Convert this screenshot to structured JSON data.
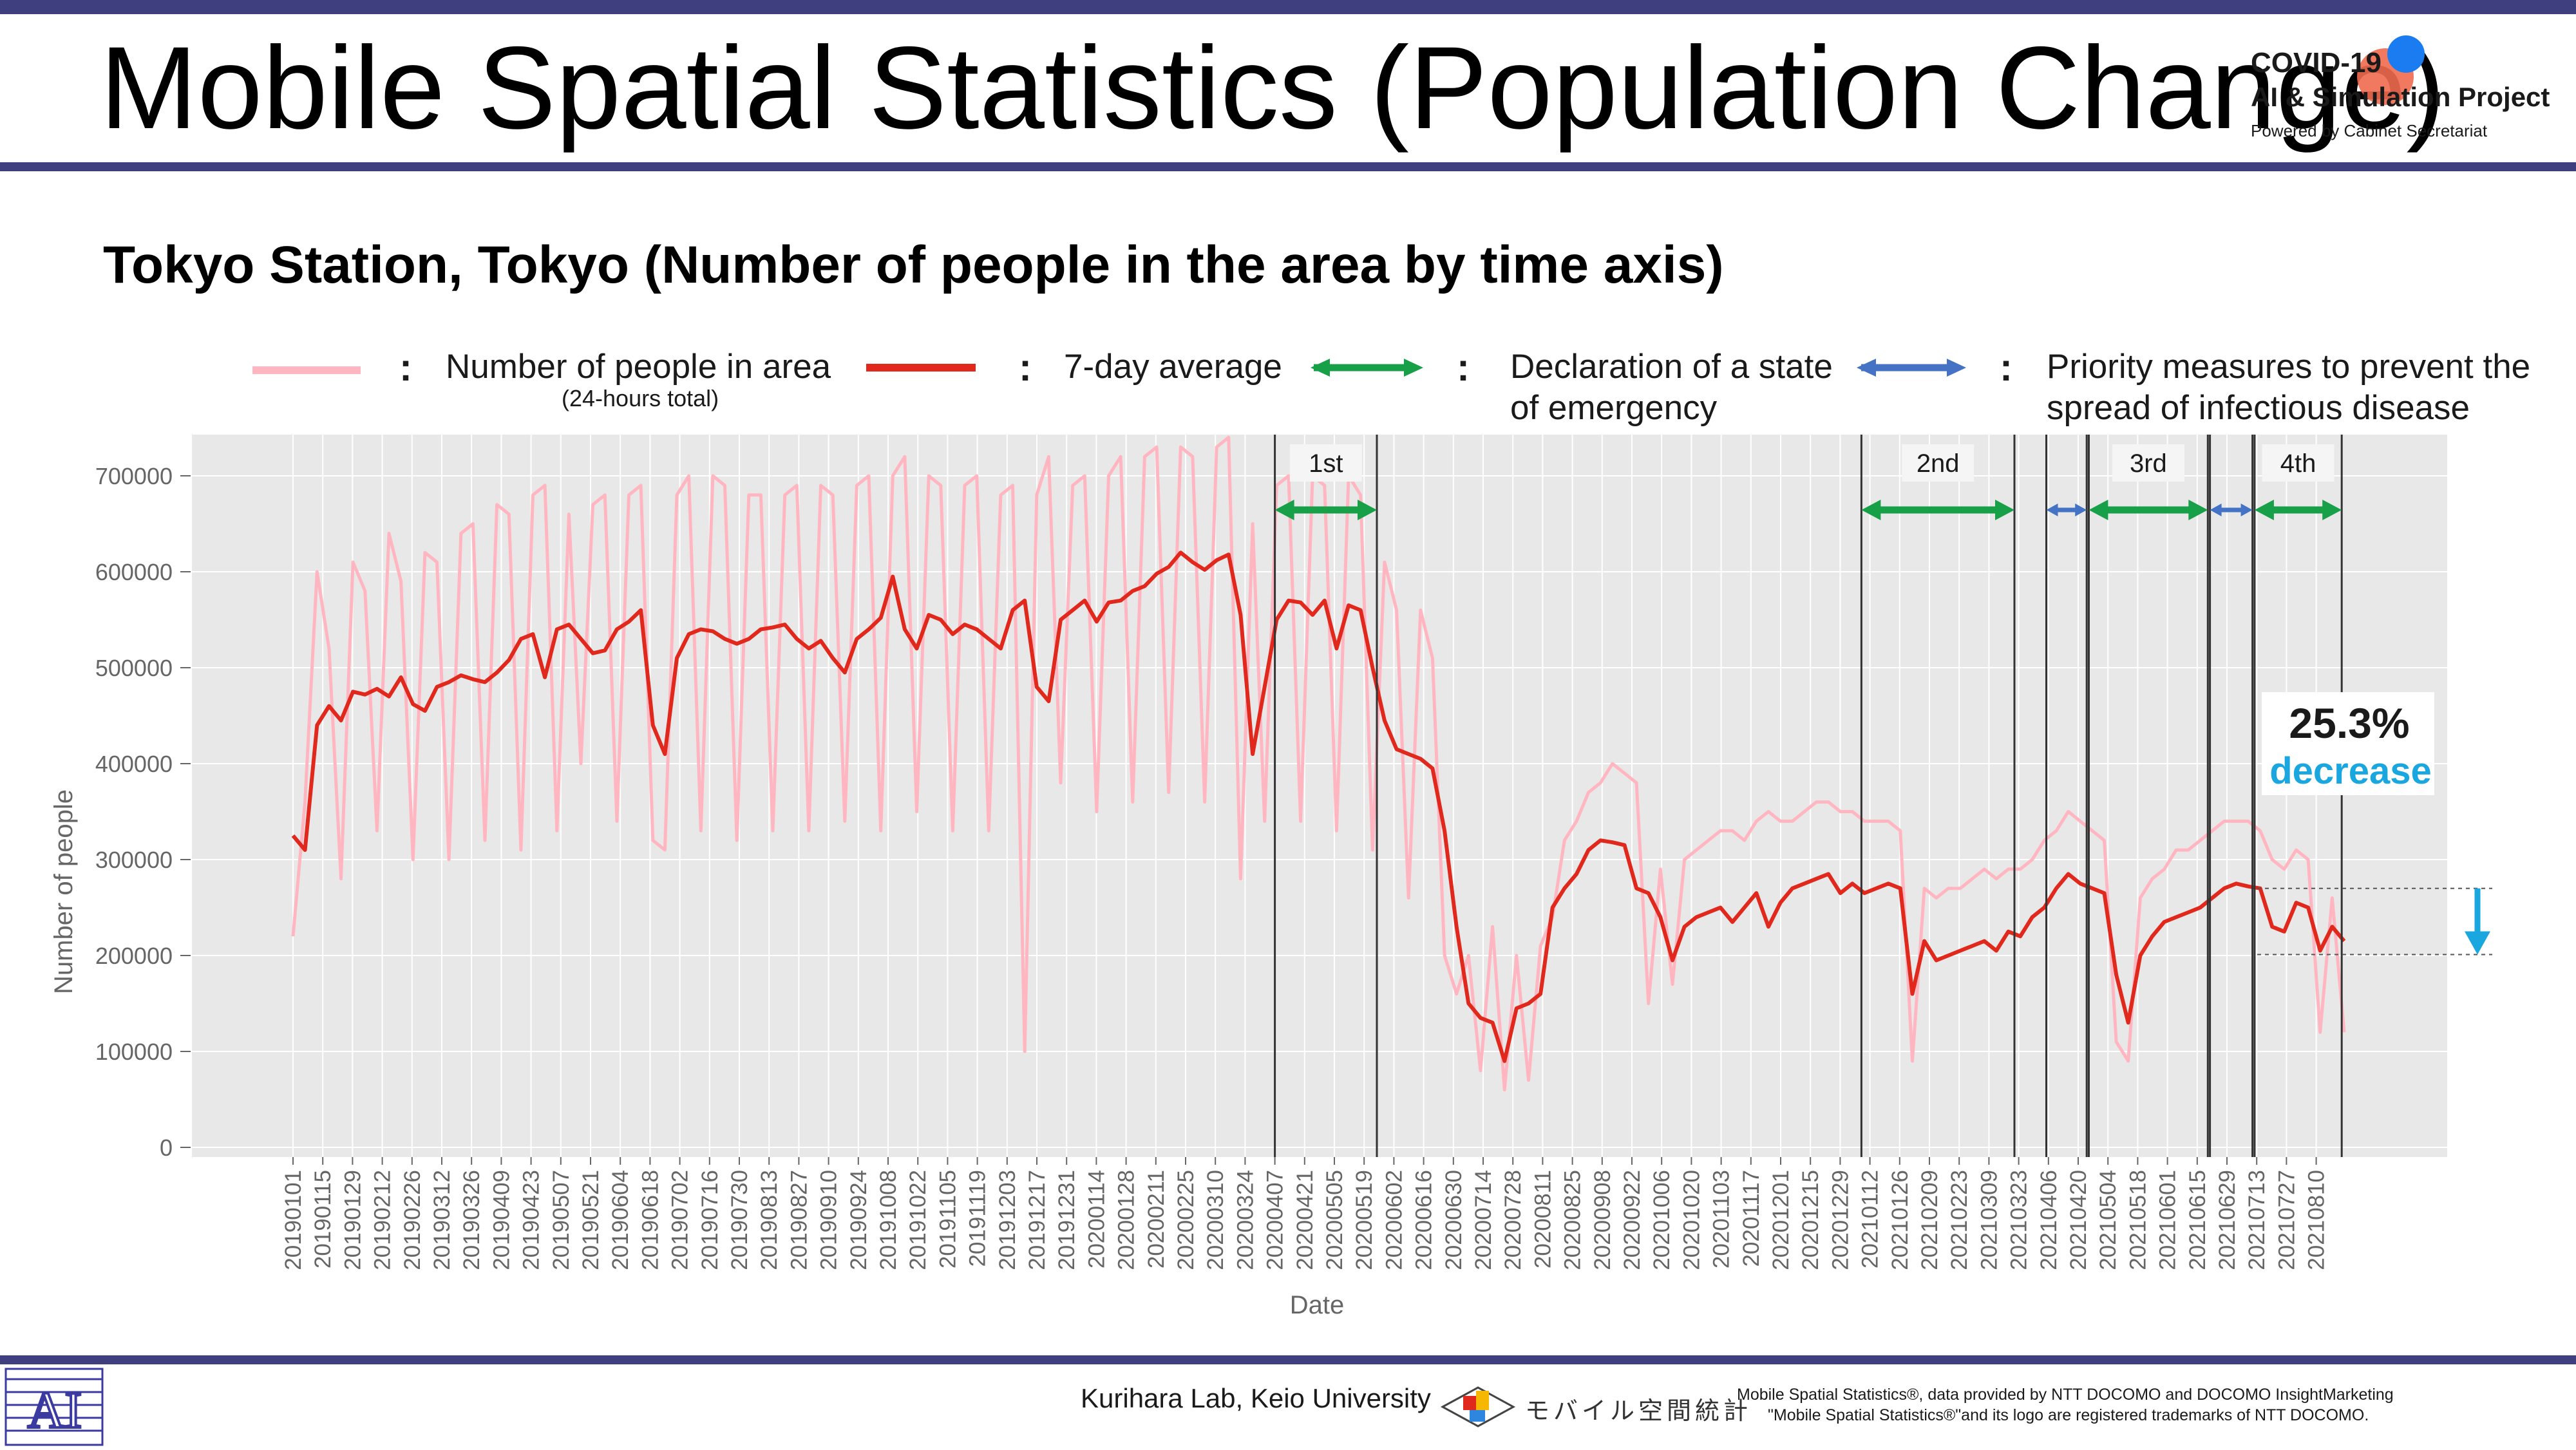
{
  "slide": {
    "title": "Mobile Spatial Statistics (Population Change)",
    "subtitle": "Tokyo Station, Tokyo (Number of people in the area by time axis)",
    "logo": {
      "line1": "COVID-19",
      "line2": "AI & Simulation Project",
      "line3": "Powered by Cabinet Secretariat"
    },
    "footer": {
      "lab": "Kurihara Lab, Keio University",
      "mobile_logo_text": "モバイル空間統計",
      "note1": "Mobile Spatial Statistics®, data provided by NTT DOCOMO and DOCOMO InsightMarketing",
      "note2": "\"Mobile Spatial Statistics®\"and its logo are registered trademarks of NTT DOCOMO."
    },
    "colors": {
      "bar": "#3f3f7f",
      "daily": "#ffb6c1",
      "avg": "#e0291c",
      "emergency": "#18a049",
      "priority": "#4472c4",
      "decrease": "#1aa7e0"
    }
  },
  "legend": {
    "colon": ":",
    "daily_label": "Number of people in area",
    "daily_sub": "(24-hours total)",
    "avg_label": "7-day average",
    "emergency_label_1": "Declaration of a state",
    "emergency_label_2": "of emergency",
    "priority_label_1": "Priority measures to prevent the",
    "priority_label_2": "spread of infectious disease"
  },
  "chart_data": {
    "type": "line",
    "xlabel": "Date",
    "ylabel": "Number of people",
    "ylim": [
      0,
      750000
    ],
    "y_ticks": [
      "0",
      "100000",
      "200000",
      "300000",
      "400000",
      "500000",
      "600000",
      "700000"
    ],
    "x_ticks": [
      "20190101",
      "20190115",
      "20190129",
      "20190212",
      "20190226",
      "20190312",
      "20190326",
      "20190409",
      "20190423",
      "20190507",
      "20190521",
      "20190604",
      "20190618",
      "20190702",
      "20190716",
      "20190730",
      "20190813",
      "20190827",
      "20190910",
      "20190924",
      "20191008",
      "20191022",
      "20191105",
      "20191119",
      "20191203",
      "20191217",
      "20191231",
      "20200114",
      "20200128",
      "20200211",
      "20200225",
      "20200310",
      "20200324",
      "20200407",
      "20200421",
      "20200505",
      "20200519",
      "20200602",
      "20200616",
      "20200630",
      "20200714",
      "20200728",
      "20200811",
      "20200825",
      "20200908",
      "20200922",
      "20201006",
      "20201020",
      "20201103",
      "20201117",
      "20201201",
      "20201215",
      "20201229",
      "20210112",
      "20210126",
      "20210209",
      "20210223",
      "20210309",
      "20210323",
      "20210406",
      "20210420",
      "20210504",
      "20210518",
      "20210601",
      "20210615",
      "20210629",
      "20210713",
      "20210727",
      "20210810"
    ],
    "grid": true,
    "series": [
      {
        "name": "7-day average",
        "values": [
          325000,
          310000,
          440000,
          460000,
          445000,
          475000,
          472000,
          478000,
          470000,
          490000,
          462000,
          455000,
          480000,
          485000,
          492000,
          488000,
          485000,
          495000,
          508000,
          530000,
          535000,
          490000,
          540000,
          545000,
          530000,
          515000,
          518000,
          540000,
          548000,
          560000,
          440000,
          410000,
          510000,
          535000,
          540000,
          538000,
          530000,
          525000,
          530000,
          540000,
          542000,
          545000,
          530000,
          520000,
          528000,
          510000,
          495000,
          530000,
          540000,
          552000,
          595000,
          540000,
          520000,
          555000,
          550000,
          535000,
          545000,
          540000,
          530000,
          520000,
          560000,
          570000,
          480000,
          465000,
          550000,
          560000,
          570000,
          548000,
          568000,
          570000,
          580000,
          585000,
          598000,
          605000,
          620000,
          610000,
          602000,
          612000,
          618000,
          555000,
          410000,
          480000,
          550000,
          570000,
          568000,
          555000,
          570000,
          520000,
          565000,
          560000,
          500000,
          445000,
          415000,
          410000,
          405000,
          395000,
          330000,
          230000,
          150000,
          135000,
          130000,
          90000,
          145000,
          150000,
          160000,
          250000,
          270000,
          285000,
          310000,
          320000,
          318000,
          315000,
          270000,
          265000,
          240000,
          195000,
          230000,
          240000,
          245000,
          250000,
          235000,
          250000,
          265000,
          230000,
          255000,
          270000,
          275000,
          280000,
          285000,
          265000,
          275000,
          265000,
          270000,
          275000,
          270000,
          160000,
          215000,
          195000,
          200000,
          205000,
          210000,
          215000,
          205000,
          225000,
          220000,
          240000,
          250000,
          270000,
          285000,
          275000,
          270000,
          265000,
          180000,
          130000,
          200000,
          220000,
          235000,
          240000,
          245000,
          250000,
          260000,
          270000,
          275000,
          272000,
          270000,
          230000,
          225000,
          255000,
          250000,
          205000,
          230000,
          215000
        ]
      },
      {
        "name": "Number of people in area",
        "values": [
          220000,
          360000,
          600000,
          520000,
          280000,
          610000,
          580000,
          330000,
          640000,
          590000,
          300000,
          620000,
          610000,
          300000,
          640000,
          650000,
          320000,
          670000,
          660000,
          310000,
          680000,
          690000,
          330000,
          660000,
          400000,
          670000,
          680000,
          340000,
          680000,
          690000,
          320000,
          310000,
          680000,
          700000,
          330000,
          700000,
          690000,
          320000,
          680000,
          680000,
          330000,
          680000,
          690000,
          330000,
          690000,
          680000,
          340000,
          690000,
          700000,
          330000,
          700000,
          720000,
          350000,
          700000,
          690000,
          330000,
          690000,
          700000,
          330000,
          680000,
          690000,
          100000,
          680000,
          720000,
          380000,
          690000,
          700000,
          350000,
          700000,
          720000,
          360000,
          720000,
          730000,
          370000,
          730000,
          720000,
          360000,
          730000,
          740000,
          280000,
          650000,
          340000,
          690000,
          700000,
          340000,
          700000,
          690000,
          330000,
          700000,
          680000,
          310000,
          610000,
          560000,
          260000,
          560000,
          510000,
          200000,
          160000,
          200000,
          80000,
          230000,
          60000,
          200000,
          70000,
          210000,
          240000,
          320000,
          340000,
          370000,
          380000,
          400000,
          390000,
          380000,
          150000,
          290000,
          170000,
          300000,
          310000,
          320000,
          330000,
          330000,
          320000,
          340000,
          350000,
          340000,
          340000,
          350000,
          360000,
          360000,
          350000,
          350000,
          340000,
          340000,
          340000,
          330000,
          90000,
          270000,
          260000,
          270000,
          270000,
          280000,
          290000,
          280000,
          290000,
          290000,
          300000,
          320000,
          330000,
          350000,
          340000,
          330000,
          320000,
          110000,
          90000,
          260000,
          280000,
          290000,
          310000,
          310000,
          320000,
          330000,
          340000,
          340000,
          340000,
          330000,
          300000,
          290000,
          310000,
          300000,
          120000,
          260000,
          120000
        ]
      }
    ],
    "periods": [
      {
        "label": "1st",
        "type": "emergency",
        "start": "20200407",
        "end": "20200525"
      },
      {
        "label": "2nd",
        "type": "emergency",
        "start": "20210108",
        "end": "20210321"
      },
      {
        "type": "priority",
        "start": "20210405",
        "end": "20210424"
      },
      {
        "label": "3rd",
        "type": "emergency",
        "start": "20210425",
        "end": "20210620"
      },
      {
        "type": "priority",
        "start": "20210621",
        "end": "20210711"
      },
      {
        "label": "4th",
        "type": "emergency",
        "start": "20210712",
        "end": "20210822"
      }
    ],
    "annotation": {
      "percent": "25.3%",
      "text": "decrease",
      "from_value": 270000,
      "to_value": 201000
    }
  }
}
